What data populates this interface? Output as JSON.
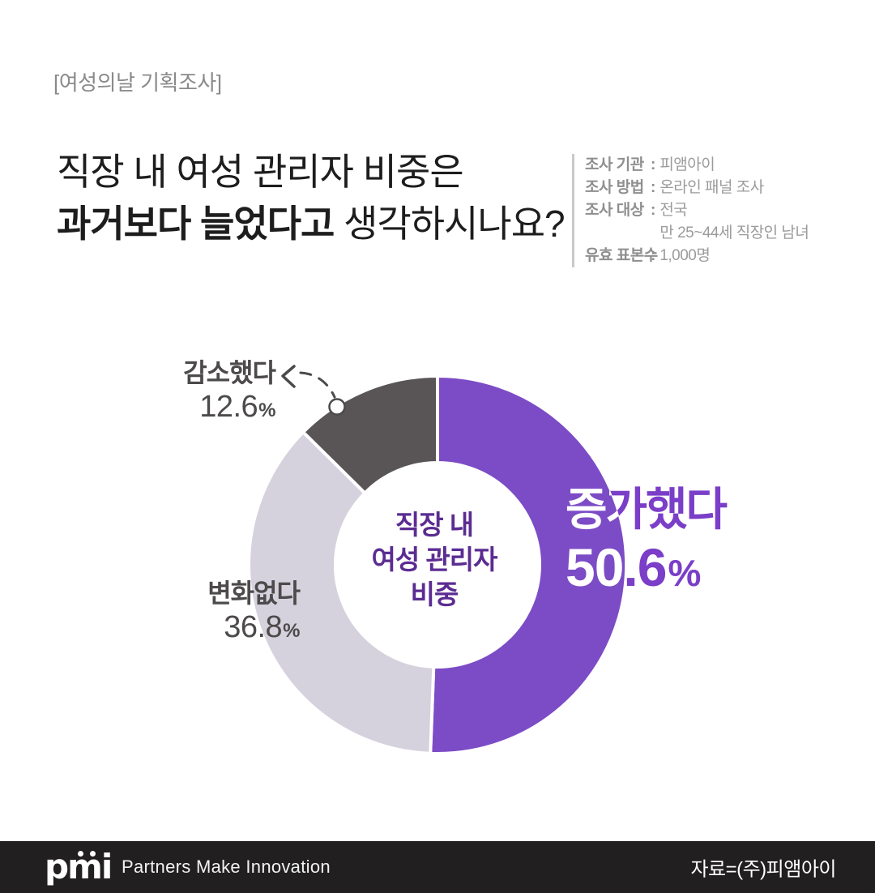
{
  "header": {
    "tag": "[여성의날 기획조사]"
  },
  "title": {
    "line1": "직장 내 여성 관리자 비중은",
    "line2_bold": "과거보다 늘었다고",
    "line2_rest": " 생각하시나요?"
  },
  "survey_info": {
    "colon": ":",
    "rows": [
      {
        "label": "조사 기관",
        "value": "피앰아이"
      },
      {
        "label": "조사 방법",
        "value": "온라인 패널 조사"
      },
      {
        "label": "조사 대상",
        "value": "전국\n만 25~44세 직장인 남녀"
      },
      {
        "label": "유효 표본수",
        "value": "1,000명"
      }
    ]
  },
  "chart_data": {
    "type": "pie",
    "subtype": "donut",
    "title": "직장 내 여성 관리자 비중",
    "center_label": "직장 내\n여성 관리자\n비중",
    "start_angle_deg": -90,
    "direction": "clockwise",
    "total": 100,
    "segments": [
      {
        "label": "증가했다",
        "value": 50.6,
        "unit": "%",
        "color": "#7C4BC6",
        "emphasis": true
      },
      {
        "label": "변화없다",
        "value": 36.8,
        "unit": "%",
        "color": "#D5D1DD"
      },
      {
        "label": "감소했다",
        "value": 12.6,
        "unit": "%",
        "color": "#595556",
        "callout": "dashed-arrow-left"
      }
    ]
  },
  "footer": {
    "logo": "pmi",
    "slogan": "Partners Make Innovation",
    "source": "자료=(주)피앰아이"
  },
  "colors": {
    "accent_purple": "#7C4BC6",
    "deep_purple": "#5B2C92",
    "label_purple": "#7A3EC8",
    "lavender": "#D5D1DD",
    "dark_gray": "#595556",
    "title_text": "#1D1D1D",
    "info_gray": "#8F8F8F",
    "footer_bg": "#211F20"
  }
}
